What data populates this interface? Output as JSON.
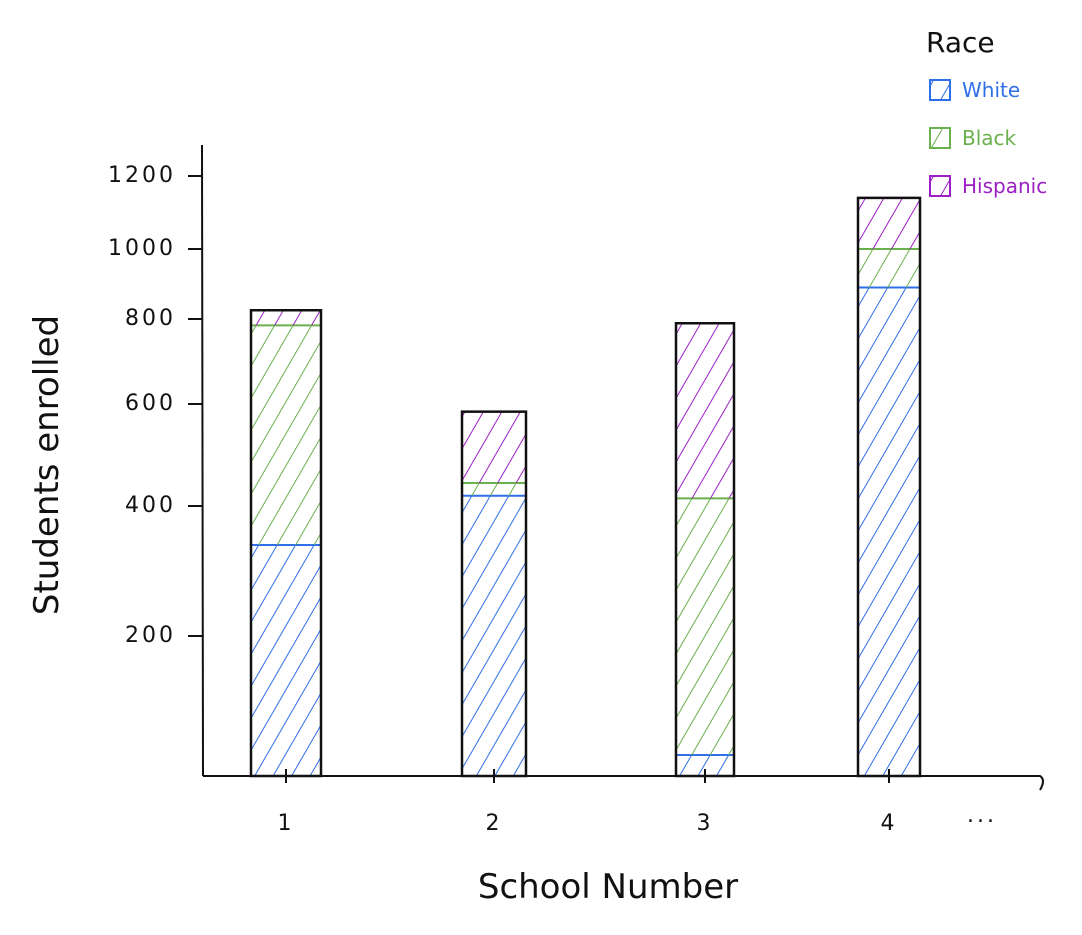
{
  "chart_data": {
    "type": "bar",
    "stacked": true,
    "categories": [
      "1",
      "2",
      "3",
      "4"
    ],
    "trailing_category_label": "...",
    "series": [
      {
        "name": "White",
        "color": "#2f6fe8",
        "values": [
          340,
          420,
          30,
          890
        ]
      },
      {
        "name": "Black",
        "color": "#6ab04c",
        "values": [
          445,
          25,
          385,
          110
        ]
      },
      {
        "name": "Hispanic",
        "color": "#9b1fc4",
        "values": [
          40,
          140,
          375,
          140
        ]
      }
    ],
    "xlabel": "School Number",
    "ylabel": "Students enrolled",
    "yticks": [
      {
        "value": 200,
        "label": "200"
      },
      {
        "value": 400,
        "label": "400"
      },
      {
        "value": 600,
        "label": "600"
      },
      {
        "value": 800,
        "label": "800"
      },
      {
        "value": 1000,
        "label": "1000"
      },
      {
        "value": 1200,
        "label": "1200"
      }
    ],
    "legend": {
      "title": "Race",
      "placement": "top-right"
    },
    "grid": false
  }
}
